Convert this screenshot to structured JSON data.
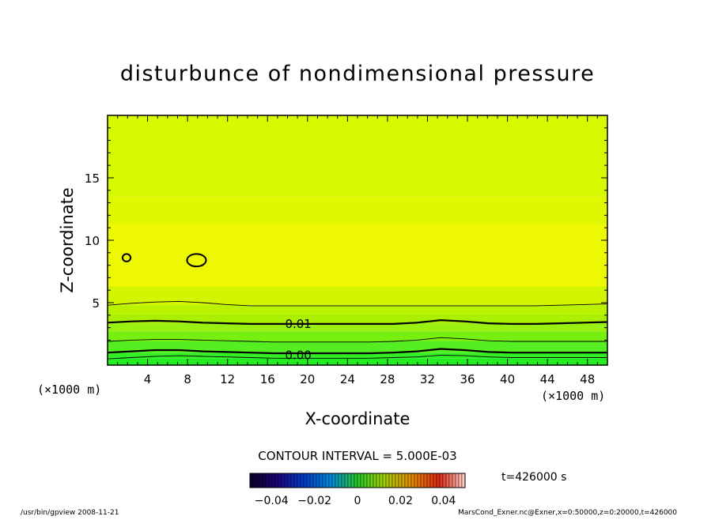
{
  "chart_data": {
    "type": "heatmap",
    "title": "disturbunce of nondimensional pressure",
    "xlabel": "X-coordinate",
    "ylabel": "Z-coordinate",
    "x_unit": "(×1000 m)",
    "y_unit": "(×1000 m)",
    "xlim": [
      0,
      50
    ],
    "ylim": [
      0,
      20
    ],
    "x_ticks": [
      "4",
      "8",
      "12",
      "16",
      "20",
      "24",
      "28",
      "32",
      "36",
      "40",
      "44",
      "48"
    ],
    "y_ticks": [
      "5",
      "10",
      "15"
    ],
    "contour_interval_label": "CONTOUR INTERVAL = 5.000E-03",
    "contour_labels": [
      {
        "text": "0.01",
        "x": 17.6,
        "z": 3.3
      },
      {
        "text": "0.00",
        "x": 17.6,
        "z": 0.8
      }
    ],
    "contour_lines": [
      {
        "level": 0.005,
        "heavy": false,
        "z": [
          0.5,
          0.6,
          0.7,
          0.75,
          0.7,
          0.65,
          0.6,
          0.55,
          0.55,
          0.55,
          0.55,
          0.55,
          0.6,
          0.65,
          0.8,
          0.75,
          0.65,
          0.6,
          0.6,
          0.6,
          0.6,
          0.6
        ]
      },
      {
        "level": 0.0,
        "heavy": true,
        "z": [
          1.0,
          1.1,
          1.2,
          1.2,
          1.1,
          1.05,
          1.0,
          0.95,
          0.95,
          0.95,
          0.95,
          0.95,
          1.0,
          1.1,
          1.3,
          1.2,
          1.05,
          1.0,
          1.0,
          1.0,
          1.0,
          1.0
        ]
      },
      {
        "level": 0.005,
        "heavy": false,
        "z": [
          1.9,
          2.0,
          2.05,
          2.05,
          2.0,
          1.95,
          1.9,
          1.85,
          1.85,
          1.85,
          1.85,
          1.85,
          1.9,
          2.0,
          2.2,
          2.1,
          1.95,
          1.9,
          1.9,
          1.9,
          1.9,
          1.9
        ]
      },
      {
        "level": 0.01,
        "heavy": true,
        "z": [
          3.4,
          3.5,
          3.55,
          3.5,
          3.4,
          3.35,
          3.3,
          3.3,
          3.3,
          3.3,
          3.3,
          3.3,
          3.3,
          3.4,
          3.6,
          3.5,
          3.35,
          3.3,
          3.3,
          3.35,
          3.4,
          3.45
        ]
      },
      {
        "level": 0.015,
        "heavy": false,
        "z": [
          4.8,
          4.95,
          5.05,
          5.1,
          5.0,
          4.85,
          4.75,
          4.75,
          4.75,
          4.75,
          4.75,
          4.75,
          4.75,
          4.75,
          4.75,
          4.75,
          4.75,
          4.75,
          4.75,
          4.8,
          4.85,
          4.9
        ]
      }
    ],
    "closed_contours": [
      {
        "cx": 1.9,
        "cz": 8.6,
        "rx": 0.4,
        "rz": 0.3
      },
      {
        "cx": 8.9,
        "cz": 8.4,
        "rx": 0.95,
        "rz": 0.5
      }
    ],
    "color_bands": [
      {
        "z": [
          0,
          0.55
        ],
        "color": "#22ee22"
      },
      {
        "z": [
          0.55,
          1.0
        ],
        "color": "#33ee22"
      },
      {
        "z": [
          1.0,
          1.9
        ],
        "color": "#55ee22"
      },
      {
        "z": [
          1.9,
          2.7
        ],
        "color": "#77f011"
      },
      {
        "z": [
          2.7,
          3.35
        ],
        "color": "#99f011"
      },
      {
        "z": [
          3.35,
          4.1
        ],
        "color": "#aaf000"
      },
      {
        "z": [
          4.1,
          4.8
        ],
        "color": "#bbf200"
      },
      {
        "z": [
          4.8,
          6.3
        ],
        "color": "#d4f500"
      },
      {
        "z": [
          6.3,
          11.3
        ],
        "color": "#eef800"
      },
      {
        "z": [
          11.3,
          13.5
        ],
        "color": "#e0f700"
      },
      {
        "z": [
          13.5,
          20
        ],
        "color": "#d8fa00"
      }
    ],
    "colorbar": {
      "labels": [
        "−0.04",
        "−0.02",
        "0",
        "0.02",
        "0.04"
      ],
      "values": [
        -0.04,
        -0.02,
        0,
        0.02,
        0.04
      ],
      "range": [
        -0.05,
        0.05
      ]
    }
  },
  "time_label": "t=426000 s",
  "footer_left": "/usr/bin/gpview   2008-11-21",
  "footer_right": "MarsCond_Exner.nc@Exner,x=0:50000,z=0:20000,t=426000"
}
